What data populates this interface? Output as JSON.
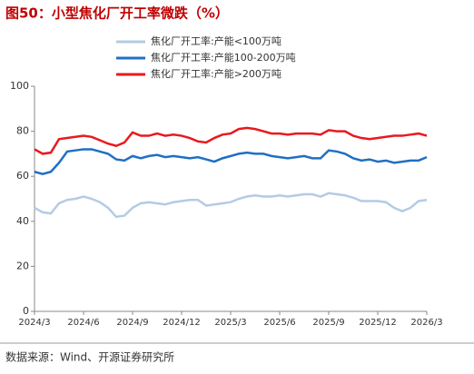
{
  "chart_data": {
    "type": "line",
    "title": "图50：小型焦化厂开工率微跌（%）",
    "source": "数据来源：Wind、开源证券研究所",
    "categories": [
      "2024/3",
      null,
      null,
      null,
      null,
      null,
      "2024/6",
      null,
      null,
      null,
      null,
      null,
      "2024/9",
      null,
      null,
      null,
      null,
      null,
      "2024/12",
      null,
      null,
      null,
      null,
      null,
      "2025/3",
      null,
      null,
      null,
      null,
      null,
      "2025/6",
      null,
      null,
      null,
      null,
      null,
      "2025/9",
      null,
      null,
      null,
      null,
      null,
      "2025/12",
      null,
      null,
      null,
      null,
      null,
      "2026/3"
    ],
    "series": [
      {
        "name": "焦化厂开工率:产能<100万吨",
        "color": "#b4cbe6",
        "values": [
          46,
          44,
          43.5,
          48,
          49.5,
          50,
          51,
          50,
          48.5,
          46,
          42,
          42.5,
          46,
          48,
          48.5,
          48,
          47.5,
          48.5,
          49,
          49.5,
          49.5,
          47,
          47.5,
          48,
          48.5,
          50,
          51,
          51.5,
          51,
          51,
          51.5,
          51,
          51.5,
          52,
          52,
          51,
          52.5,
          52,
          51.5,
          50.5,
          49,
          49,
          49,
          48.5,
          46,
          44.5,
          46,
          49,
          49.5
        ]
      },
      {
        "name": "焦化厂开工率:产能100-200万吨",
        "color": "#1f6fc4",
        "values": [
          62,
          61,
          62,
          66,
          71,
          71.5,
          72,
          72,
          71,
          70,
          67.5,
          67,
          69,
          68,
          69,
          69.5,
          68.5,
          69,
          68.5,
          68,
          68.5,
          67.5,
          66.5,
          68,
          69,
          70,
          70.5,
          70,
          70,
          69,
          68.5,
          68,
          68.5,
          69,
          68,
          68,
          71.5,
          71,
          70,
          68,
          67,
          67.5,
          66.5,
          67,
          66,
          66.5,
          67,
          67,
          68.5
        ]
      },
      {
        "name": "焦化厂开工率:产能>200万吨",
        "color": "#e8191e",
        "values": [
          72,
          70,
          70.5,
          76.5,
          77,
          77.5,
          78,
          77.5,
          76,
          74.5,
          73.5,
          75,
          79.5,
          78,
          78,
          79,
          78,
          78.5,
          78,
          77,
          75.5,
          75,
          77,
          78.5,
          79,
          81,
          81.5,
          81,
          80,
          79,
          79,
          78.5,
          79,
          79,
          79,
          78.5,
          80.5,
          80,
          80,
          78,
          77,
          76.5,
          77,
          77.5,
          78,
          78,
          78.5,
          79,
          78
        ]
      }
    ],
    "ylim": [
      0,
      100
    ],
    "yticks": [
      0,
      20,
      40,
      60,
      80,
      100
    ]
  }
}
